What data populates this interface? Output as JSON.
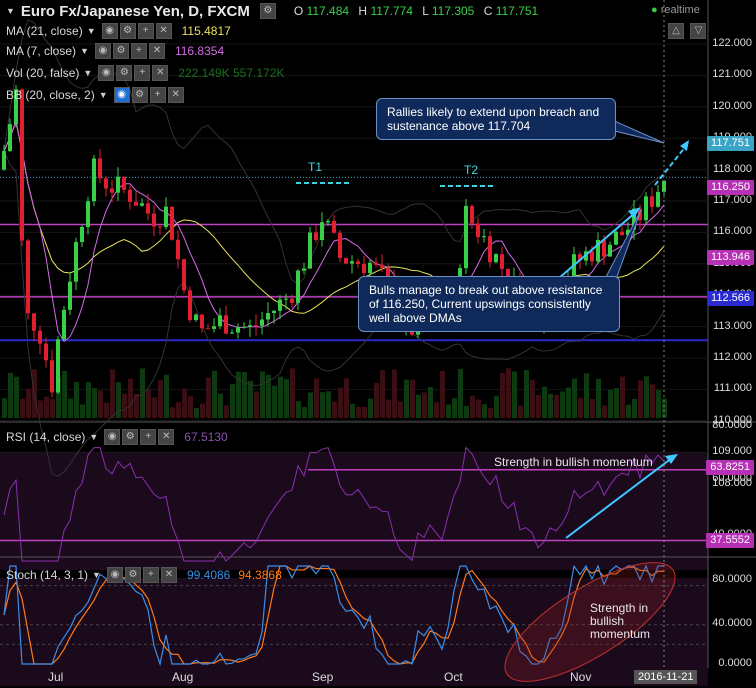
{
  "header": {
    "title": "Euro Fx/Japanese Yen, D, FXCM",
    "ohlc": {
      "o_label": "O",
      "o": "117.484",
      "h_label": "H",
      "h": "117.774",
      "l_label": "L",
      "l": "117.305",
      "c_label": "C",
      "c": "117.751"
    },
    "realtime": "realtime",
    "buttons": [
      "△",
      "▽"
    ]
  },
  "indicators": [
    {
      "label": "MA (21, close)",
      "value": "115.4817",
      "color": "#e8e05a"
    },
    {
      "label": "MA (7, close)",
      "value": "116.8354",
      "color": "#d46be8"
    },
    {
      "label": "Vol (20, false)",
      "value": "222.149K  557.172K",
      "color": "#1b5f1b"
    },
    {
      "label": "BB (20, close, 2)",
      "value": "",
      "color": "#c0c0c0"
    }
  ],
  "price_axis": {
    "ticks": [
      "122.000",
      "121.000",
      "120.000",
      "119.000",
      "118.000",
      "117.000",
      "116.000",
      "115.000",
      "114.000",
      "113.000",
      "112.000",
      "111.000",
      "110.000",
      "109.000",
      "108.000"
    ],
    "tags": [
      {
        "text": "117.751",
        "color": "#3aa4c7"
      },
      {
        "text": "116.250",
        "color": "#b530b5"
      },
      {
        "text": "113.946",
        "color": "#b530b5"
      },
      {
        "text": "112.566",
        "color": "#2a2ad0"
      }
    ]
  },
  "annotations": {
    "rally_note": "Rallies likely to extend upon breach and sustenance above 117.704",
    "bulls_note": "Bulls manage to break out above resistance of 116.250, Current upswings consistently well above DMAs",
    "t1": "T1",
    "t2": "T2",
    "rsi_note": "Strength in bullish momentum",
    "stoch_note": "Strength in bullish momentum"
  },
  "rsi": {
    "label": "RSI (14, close)",
    "value": "67.5130",
    "axis": [
      "80.0000",
      "60.0000",
      "40.0000"
    ],
    "tags": [
      {
        "text": "63.8251",
        "color": "#b530b5"
      },
      {
        "text": "37.5552",
        "color": "#b530b5"
      }
    ]
  },
  "stoch": {
    "label": "Stoch (14, 3, 1)",
    "k_value": "99.4086",
    "d_value": "94.3868",
    "axis": [
      "80.0000",
      "40.0000",
      "0.0000"
    ]
  },
  "x_axis": {
    "labels": [
      "Jul",
      "Aug",
      "Sep",
      "Oct",
      "Nov"
    ],
    "date_tag": "2016-11-21"
  },
  "colors": {
    "up": "#38d047",
    "down": "#e02030",
    "ma21": "#e8e05a",
    "ma7": "#d46be8",
    "resistance": "#c040c0",
    "support": "#2a2ad0",
    "rsi_line": "#8a2fb0",
    "stoch_k": "#3a8ee8",
    "stoch_d": "#ff7a1a",
    "arrow": "#3ec8ff"
  }
}
